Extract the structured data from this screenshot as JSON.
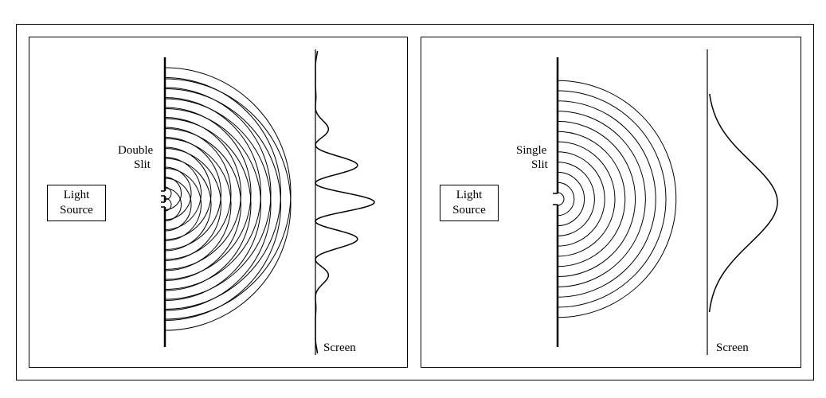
{
  "panels": {
    "double": {
      "light_source": [
        "Light",
        "Source"
      ],
      "slit_label": [
        "Double",
        "Slit"
      ],
      "screen_label": "Screen"
    },
    "single": {
      "light_source": [
        "Light",
        "Source"
      ],
      "slit_label": [
        "Single",
        "Slit"
      ],
      "screen_label": "Screen"
    }
  },
  "colors": {
    "line": "#000000",
    "background": "#ffffff"
  }
}
